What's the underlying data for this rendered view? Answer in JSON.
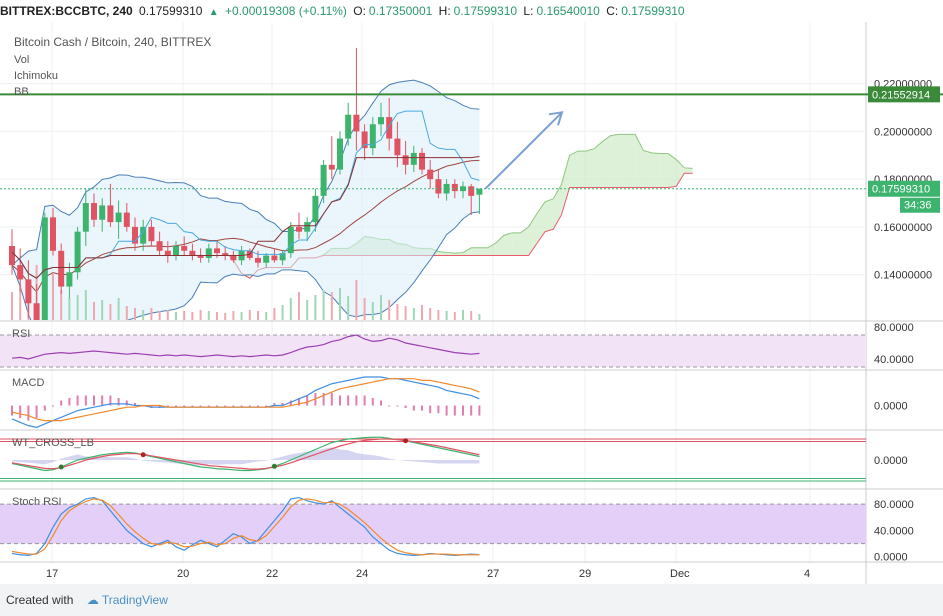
{
  "header": {
    "symbol": "BITTREX:BCCBTC, 240",
    "last": "0.17599310",
    "change": "+0.00019308 (+0.11%)",
    "o_label": "O:",
    "o": "0.17350001",
    "h_label": "H:",
    "h": "0.17599310",
    "l_label": "L:",
    "l": "0.16540010",
    "c_label": "C:",
    "c": "0.17599310"
  },
  "legend": {
    "title": "Bitcoin Cash / Bitcoin, 240, BITTREX",
    "items": [
      "Vol",
      "Ichimoku",
      "BB"
    ]
  },
  "footer": {
    "created": "Created with",
    "brand": "TradingView"
  },
  "colors": {
    "up": "#3cb46e",
    "down": "#e05363",
    "bb": "#4a7fb5",
    "ichimoku_lead": "#8fc77f",
    "ichimoku_red": "#e85c6a",
    "rsi": "#9c3fb0",
    "macd": "#3f8fe0",
    "signal": "#f08a2e",
    "hline": "#3a8a3a",
    "price_tag": "#3cb46e"
  },
  "chart_data": [
    {
      "type": "candlestick",
      "title": "Bitcoin Cash / Bitcoin, 240, BITTREX",
      "x_ticks": [
        "17",
        "20",
        "22",
        "24",
        "27",
        "29",
        "Dec",
        "4"
      ],
      "y_ticks": [
        "0.14000000",
        "0.16000000",
        "0.18000000",
        "0.20000000",
        "0.22000000"
      ],
      "ylim": [
        0.121,
        0.245
      ],
      "horizontal_line": {
        "value": "0.21552914"
      },
      "last_price": {
        "value": "0.17599310",
        "countdown": "34:36"
      },
      "candles": [
        [
          0.152,
          0.159,
          0.14,
          0.144
        ],
        [
          0.144,
          0.151,
          0.133,
          0.138
        ],
        [
          0.138,
          0.146,
          0.122,
          0.128
        ],
        [
          0.128,
          0.136,
          0.118,
          0.121
        ],
        [
          0.121,
          0.166,
          0.119,
          0.164
        ],
        [
          0.164,
          0.168,
          0.148,
          0.15
        ],
        [
          0.15,
          0.153,
          0.132,
          0.135
        ],
        [
          0.135,
          0.145,
          0.13,
          0.141
        ],
        [
          0.141,
          0.16,
          0.138,
          0.158
        ],
        [
          0.158,
          0.176,
          0.152,
          0.17
        ],
        [
          0.17,
          0.174,
          0.16,
          0.163
        ],
        [
          0.163,
          0.172,
          0.158,
          0.169
        ],
        [
          0.169,
          0.178,
          0.16,
          0.162
        ],
        [
          0.162,
          0.171,
          0.155,
          0.166
        ],
        [
          0.166,
          0.17,
          0.158,
          0.16
        ],
        [
          0.16,
          0.164,
          0.15,
          0.153
        ],
        [
          0.153,
          0.163,
          0.15,
          0.16
        ],
        [
          0.16,
          0.163,
          0.152,
          0.154
        ],
        [
          0.154,
          0.158,
          0.148,
          0.15
        ],
        [
          0.15,
          0.154,
          0.145,
          0.148
        ],
        [
          0.148,
          0.154,
          0.146,
          0.152
        ],
        [
          0.152,
          0.156,
          0.148,
          0.15
        ],
        [
          0.15,
          0.153,
          0.146,
          0.148
        ],
        [
          0.148,
          0.151,
          0.145,
          0.147
        ],
        [
          0.147,
          0.153,
          0.145,
          0.151
        ],
        [
          0.151,
          0.154,
          0.147,
          0.149
        ],
        [
          0.149,
          0.152,
          0.146,
          0.148
        ],
        [
          0.148,
          0.15,
          0.145,
          0.146
        ],
        [
          0.146,
          0.152,
          0.144,
          0.15
        ],
        [
          0.15,
          0.151,
          0.146,
          0.147
        ],
        [
          0.147,
          0.15,
          0.143,
          0.145
        ],
        [
          0.145,
          0.149,
          0.143,
          0.148
        ],
        [
          0.148,
          0.151,
          0.145,
          0.146
        ],
        [
          0.146,
          0.15,
          0.144,
          0.149
        ],
        [
          0.149,
          0.162,
          0.147,
          0.16
        ],
        [
          0.16,
          0.166,
          0.155,
          0.158
        ],
        [
          0.158,
          0.164,
          0.154,
          0.162
        ],
        [
          0.162,
          0.176,
          0.158,
          0.173
        ],
        [
          0.173,
          0.188,
          0.17,
          0.186
        ],
        [
          0.186,
          0.198,
          0.18,
          0.184
        ],
        [
          0.184,
          0.2,
          0.182,
          0.197
        ],
        [
          0.197,
          0.212,
          0.194,
          0.207
        ],
        [
          0.207,
          0.235,
          0.192,
          0.2
        ],
        [
          0.2,
          0.203,
          0.188,
          0.193
        ],
        [
          0.193,
          0.206,
          0.19,
          0.203
        ],
        [
          0.203,
          0.212,
          0.198,
          0.206
        ],
        [
          0.206,
          0.214,
          0.192,
          0.197
        ],
        [
          0.197,
          0.204,
          0.185,
          0.19
        ],
        [
          0.19,
          0.196,
          0.182,
          0.186
        ],
        [
          0.186,
          0.194,
          0.183,
          0.191
        ],
        [
          0.191,
          0.193,
          0.182,
          0.184
        ],
        [
          0.184,
          0.188,
          0.176,
          0.18
        ],
        [
          0.18,
          0.184,
          0.172,
          0.174
        ],
        [
          0.174,
          0.18,
          0.171,
          0.178
        ],
        [
          0.178,
          0.18,
          0.172,
          0.175
        ],
        [
          0.175,
          0.179,
          0.172,
          0.177
        ],
        [
          0.177,
          0.178,
          0.165,
          0.173
        ],
        [
          0.1735,
          0.176,
          0.1654,
          0.176
        ]
      ],
      "volume": [
        28,
        35,
        40,
        55,
        60,
        46,
        30,
        22,
        25,
        30,
        18,
        20,
        16,
        22,
        14,
        12,
        10,
        12,
        9,
        10,
        8,
        9,
        8,
        10,
        9,
        8,
        7,
        9,
        8,
        10,
        9,
        8,
        12,
        15,
        22,
        28,
        20,
        25,
        30,
        28,
        32,
        24,
        40,
        22,
        18,
        25,
        20,
        16,
        14,
        12,
        15,
        12,
        10,
        9,
        8,
        10,
        9,
        6
      ]
    },
    {
      "type": "line",
      "title": "RSI",
      "y_ticks": [
        "40.0000",
        "80.0000"
      ],
      "ylim": [
        30,
        85
      ],
      "values": [
        41,
        42,
        40,
        43,
        46,
        47,
        48,
        47,
        48,
        49,
        50,
        49,
        48,
        47,
        46,
        47,
        46,
        45,
        44,
        45,
        44,
        45,
        44,
        43,
        44,
        45,
        44,
        43,
        44,
        43,
        44,
        45,
        44,
        45,
        48,
        52,
        55,
        56,
        58,
        62,
        64,
        68,
        70,
        65,
        62,
        63,
        66,
        64,
        60,
        58,
        56,
        54,
        52,
        50,
        48,
        47,
        46,
        47
      ]
    },
    {
      "type": "line",
      "title": "MACD",
      "y_ticks": [
        "0.0000"
      ],
      "ylim": [
        -0.014,
        0.02
      ],
      "series": [
        {
          "values": [
            -0.008,
            -0.01,
            -0.012,
            -0.013,
            -0.011,
            -0.009,
            -0.007,
            -0.005,
            -0.003,
            -0.002,
            -0.001,
            0.0,
            0.001,
            0.001,
            0.001,
            0.0,
            0.0,
            -0.001,
            -0.001,
            -0.001,
            -0.001,
            -0.001,
            -0.001,
            -0.001,
            -0.001,
            -0.001,
            -0.001,
            -0.001,
            -0.001,
            -0.001,
            -0.001,
            -0.001,
            0.0,
            0.0,
            0.002,
            0.004,
            0.006,
            0.009,
            0.011,
            0.013,
            0.014,
            0.015,
            0.016,
            0.017,
            0.017,
            0.017,
            0.016,
            0.016,
            0.015,
            0.014,
            0.013,
            0.012,
            0.011,
            0.009,
            0.008,
            0.007,
            0.006,
            0.004
          ]
        },
        {
          "values": [
            -0.004,
            -0.005,
            -0.006,
            -0.008,
            -0.009,
            -0.009,
            -0.009,
            -0.008,
            -0.007,
            -0.006,
            -0.005,
            -0.004,
            -0.003,
            -0.002,
            -0.001,
            -0.001,
            0.0,
            0.0,
            0.0,
            -0.001,
            -0.001,
            -0.001,
            -0.001,
            -0.001,
            -0.001,
            -0.001,
            -0.001,
            -0.001,
            -0.001,
            -0.001,
            -0.001,
            -0.001,
            -0.001,
            -0.001,
            0.0,
            0.001,
            0.002,
            0.004,
            0.006,
            0.008,
            0.01,
            0.011,
            0.012,
            0.013,
            0.014,
            0.015,
            0.016,
            0.016,
            0.016,
            0.016,
            0.015,
            0.015,
            0.014,
            0.013,
            0.012,
            0.011,
            0.01,
            0.008
          ]
        }
      ]
    },
    {
      "type": "line",
      "title": "WT_CROSS_LB",
      "y_ticks": [
        "0.0000"
      ],
      "ylim": [
        -80,
        80
      ],
      "series": [
        {
          "values": [
            -10,
            -15,
            -20,
            -25,
            -30,
            -28,
            -20,
            -10,
            0,
            5,
            10,
            15,
            18,
            20,
            22,
            20,
            15,
            10,
            5,
            0,
            -5,
            -10,
            -15,
            -20,
            -22,
            -25,
            -26,
            -28,
            -30,
            -30,
            -28,
            -25,
            -18,
            -10,
            0,
            10,
            20,
            30,
            40,
            50,
            55,
            60,
            62,
            64,
            65,
            65,
            62,
            58,
            55,
            50,
            45,
            40,
            35,
            30,
            25,
            20,
            15,
            10
          ]
        },
        {
          "values": [
            -8,
            -12,
            -16,
            -20,
            -24,
            -25,
            -22,
            -15,
            -8,
            0,
            5,
            10,
            14,
            16,
            18,
            18,
            16,
            12,
            8,
            4,
            0,
            -4,
            -8,
            -12,
            -16,
            -18,
            -20,
            -22,
            -24,
            -26,
            -26,
            -24,
            -20,
            -15,
            -8,
            0,
            8,
            16,
            24,
            32,
            40,
            46,
            52,
            56,
            58,
            60,
            60,
            58,
            56,
            52,
            48,
            44,
            40,
            35,
            30,
            25,
            20,
            15
          ]
        }
      ]
    },
    {
      "type": "line",
      "title": "Stoch RSI",
      "y_ticks": [
        "0.0000",
        "40.0000",
        "80.0000"
      ],
      "ylim": [
        -5,
        100
      ],
      "series": [
        {
          "values": [
            5,
            3,
            2,
            5,
            20,
            45,
            65,
            75,
            80,
            88,
            90,
            85,
            70,
            55,
            40,
            30,
            20,
            15,
            20,
            25,
            15,
            10,
            18,
            25,
            20,
            15,
            25,
            35,
            30,
            20,
            25,
            40,
            55,
            70,
            88,
            90,
            85,
            82,
            80,
            85,
            75,
            65,
            55,
            45,
            30,
            20,
            10,
            5,
            3,
            2,
            3,
            5,
            4,
            3,
            2,
            3,
            4,
            3
          ]
        },
        {
          "values": [
            8,
            6,
            4,
            4,
            12,
            32,
            55,
            70,
            78,
            84,
            88,
            86,
            78,
            64,
            50,
            38,
            28,
            20,
            18,
            22,
            20,
            15,
            16,
            20,
            22,
            18,
            20,
            28,
            32,
            26,
            24,
            32,
            46,
            60,
            76,
            86,
            88,
            86,
            82,
            83,
            80,
            72,
            62,
            52,
            40,
            28,
            18,
            10,
            6,
            4,
            3,
            4,
            4,
            4,
            3,
            3,
            3,
            3
          ]
        }
      ]
    }
  ]
}
